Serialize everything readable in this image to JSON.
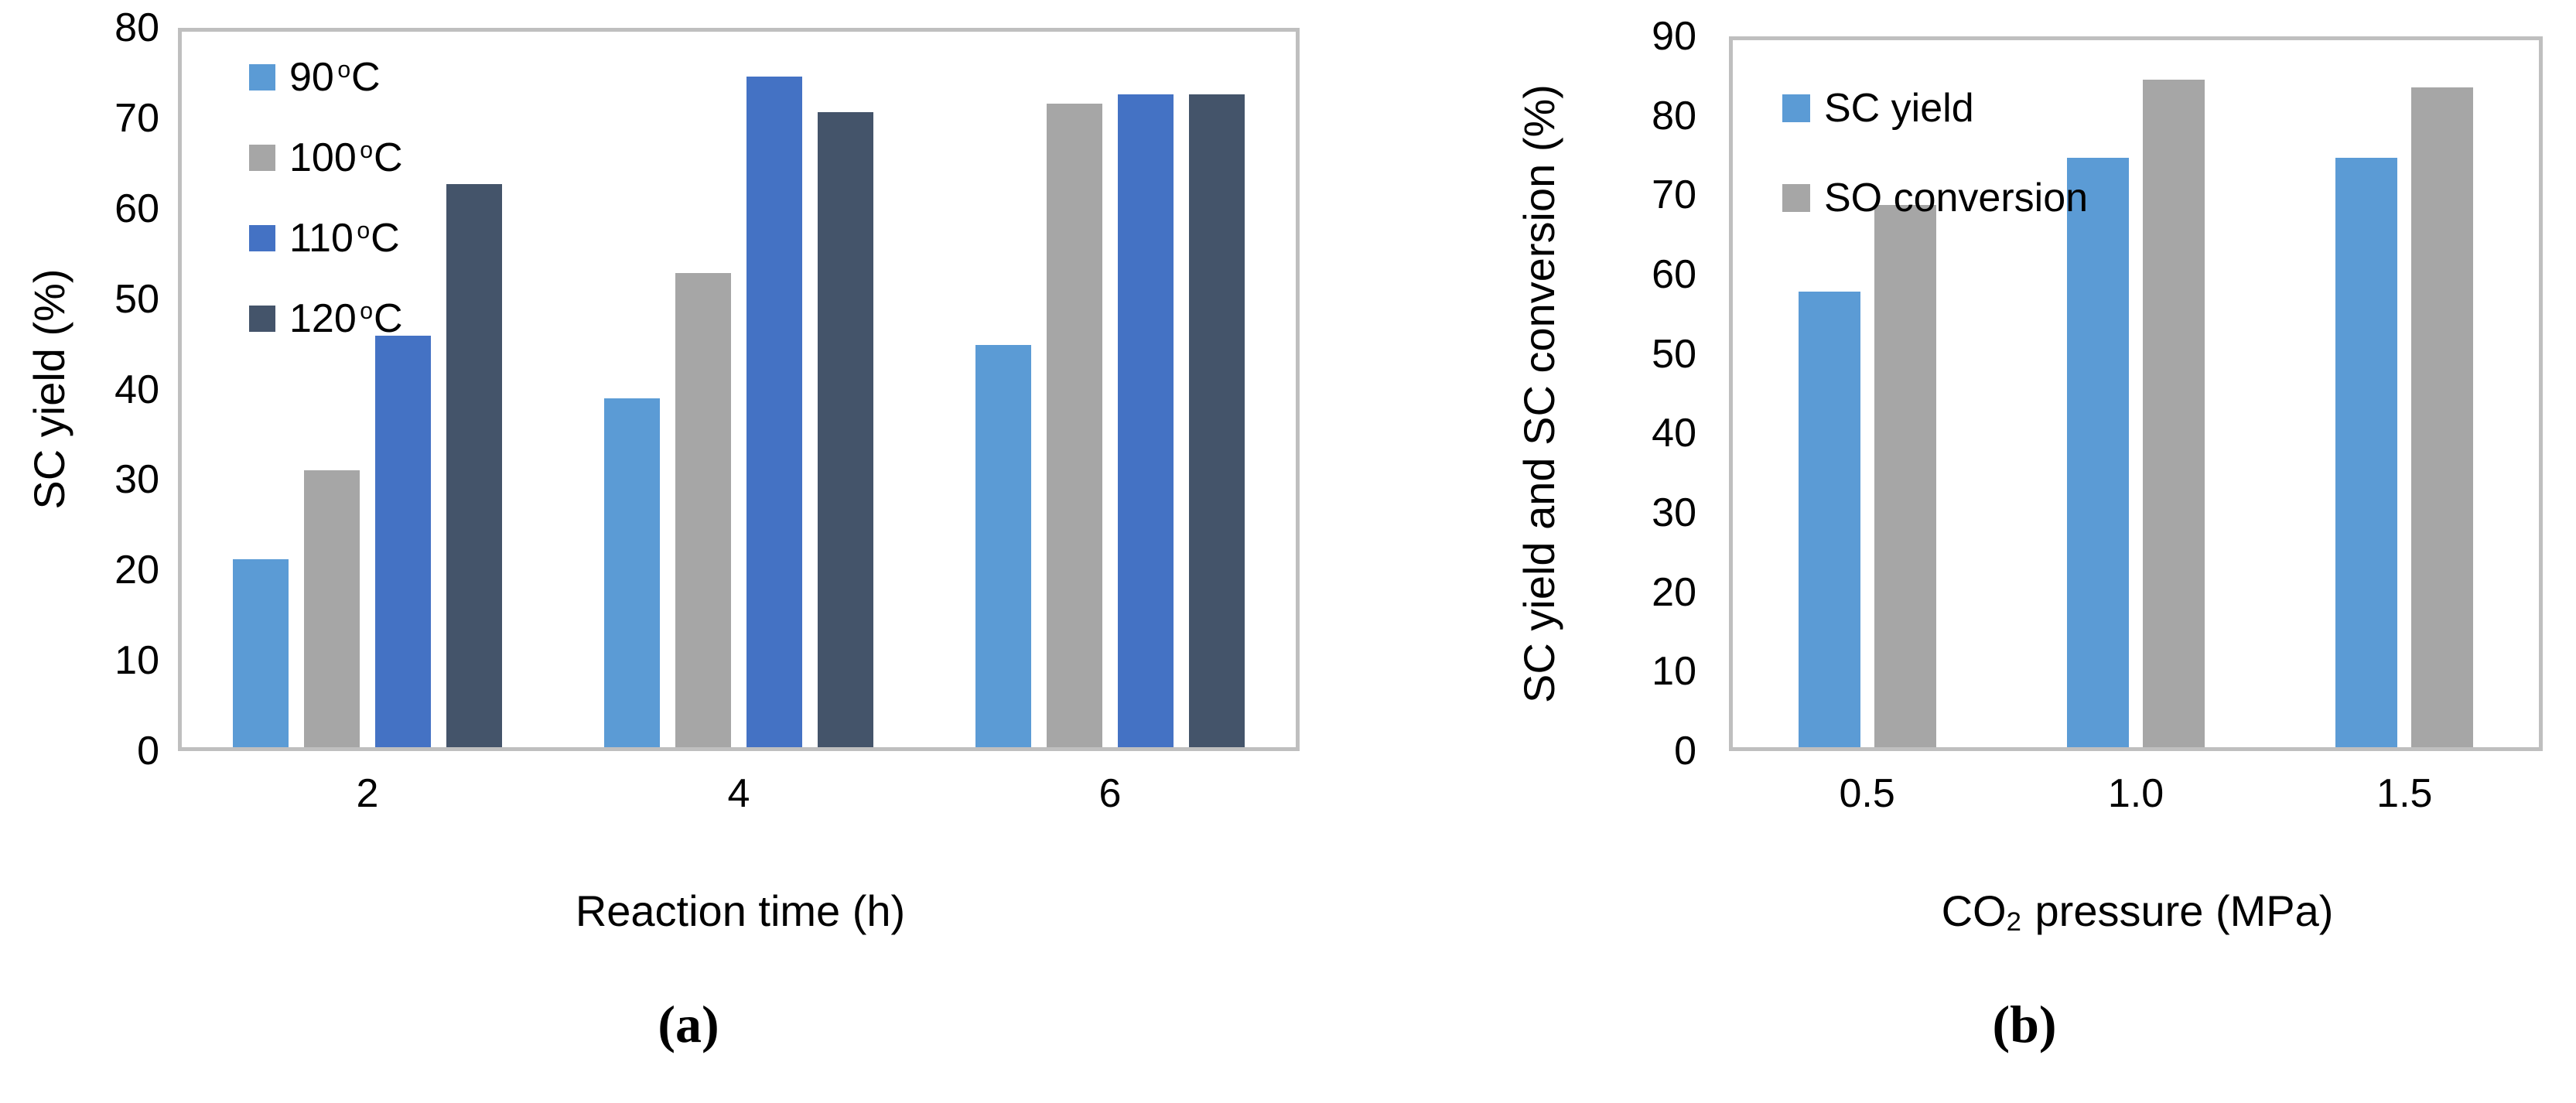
{
  "chart_data": [
    {
      "type": "bar",
      "panel": "a",
      "title": "",
      "categories": [
        "2",
        "4",
        "6"
      ],
      "series": [
        {
          "name": "90",
          "name_sup": "o",
          "name_after": "C",
          "color": "#5B9BD5",
          "values": [
            21,
            39,
            45
          ]
        },
        {
          "name": "100",
          "name_sup": "o",
          "name_after": "C",
          "color": "#A6A6A6",
          "values": [
            31,
            53,
            72
          ]
        },
        {
          "name": "110",
          "name_sup": "o",
          "name_after": "C",
          "color": "#4472C4",
          "values": [
            46,
            75,
            73
          ]
        },
        {
          "name": "120",
          "name_sup": "o",
          "name_after": "C",
          "color": "#44546A",
          "values": [
            63,
            71,
            73
          ]
        }
      ],
      "xlabel": "Reaction time (h)",
      "ylabel": "SC yield (%)",
      "ylim": [
        0,
        80
      ],
      "ytick_step": 10,
      "grid": false,
      "legend_position": "top-left-inside",
      "plot_border_color": "#BFBFBF",
      "text_color": "#000000",
      "caption": "(a)"
    },
    {
      "type": "bar",
      "panel": "b",
      "title": "",
      "categories": [
        "0.5",
        "1.0",
        "1.5"
      ],
      "series": [
        {
          "name": "SC yield",
          "color": "#5B9BD5",
          "values": [
            58,
            75,
            75
          ]
        },
        {
          "name": "SO conversion",
          "color": "#A6A6A6",
          "values": [
            69,
            85,
            84
          ]
        }
      ],
      "xlabel": "CO2 pressure (MPa)",
      "xlabel_parts": {
        "text": "CO",
        "sub": "2",
        "after": " pressure (MPa)"
      },
      "ylabel": "SC yield and SC conversion (%)",
      "ylim": [
        0,
        90
      ],
      "ytick_step": 10,
      "grid": false,
      "legend_position": "top-left-inside",
      "plot_border_color": "#BFBFBF",
      "text_color": "#000000",
      "caption": "(b)"
    }
  ]
}
